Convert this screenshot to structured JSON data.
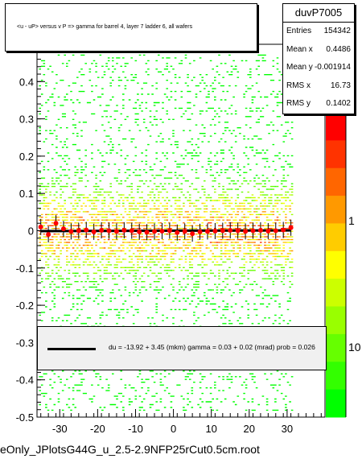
{
  "title": "<u - uP>       versus   v P =>  gamma for barrel 4, layer 7 ladder 6, all wafers",
  "stats": {
    "name": "duvP7005",
    "rows": [
      {
        "label": "Entries",
        "value": "154342"
      },
      {
        "label": "Mean x",
        "value": "0.4486"
      },
      {
        "label": "Mean y",
        "value": "-0.001914"
      },
      {
        "label": "RMS x",
        "value": "16.73"
      },
      {
        "label": "RMS y",
        "value": "0.1402"
      }
    ]
  },
  "legend_text": "du =  -13.92 +   3.45 (mkm) gamma =    0.03 +  0.02 (mrad) prob = 0.026",
  "footer": "eOnly_JPlotsG44G_u_2.5-2.9NFP25rCut0.5cm.root",
  "colors": {
    "fit_line": "#000000",
    "profile_points": "#ff0000",
    "frame": "#000000"
  },
  "chart_data": {
    "type": "heatmap",
    "x_range": [
      -36,
      40
    ],
    "y_range": [
      -0.5,
      0.5
    ],
    "x_ticks": [
      -30,
      -20,
      -10,
      0,
      10,
      20,
      30
    ],
    "x_tick_labels": [
      "-30",
      "-20",
      "-10",
      "0",
      "10",
      "20",
      "30"
    ],
    "y_ticks": [
      -0.5,
      -0.4,
      -0.3,
      -0.2,
      -0.1,
      0,
      0.1,
      0.2,
      0.3,
      0.4
    ],
    "y_tick_labels": [
      "-0.5",
      "-0.4",
      "-0.3",
      "-0.2",
      "-0.1",
      "0",
      "0.1",
      "0.2",
      "0.3",
      "0.4"
    ],
    "z_scale": "log",
    "z_tick_labels": [
      "1",
      "10"
    ],
    "fit": {
      "intercept": -0.01392,
      "slope": 3e-05,
      "x_from": -35,
      "x_to": 31
    },
    "profile": {
      "x": [
        -35,
        -33,
        -31,
        -29,
        -27,
        -25,
        -23,
        -21,
        -19,
        -17,
        -15,
        -13,
        -11,
        -9,
        -7,
        -5,
        -3,
        -1,
        1,
        3,
        5,
        7,
        9,
        11,
        13,
        15,
        17,
        19,
        21,
        23,
        25,
        27,
        29,
        31
      ],
      "y": [
        0.01,
        -0.01,
        0.02,
        0.005,
        -0.002,
        0.0,
        0.002,
        -0.003,
        0.001,
        0.0,
        -0.002,
        0.001,
        0.0,
        -0.003,
        -0.004,
        -0.002,
        -0.001,
        0.0,
        -0.005,
        -0.002,
        -0.008,
        -0.003,
        -0.002,
        -0.001,
        0.0,
        0.001,
        0.0,
        -0.002,
        0.0,
        0.001,
        -0.001,
        0.0,
        0.002,
        0.008
      ]
    }
  }
}
